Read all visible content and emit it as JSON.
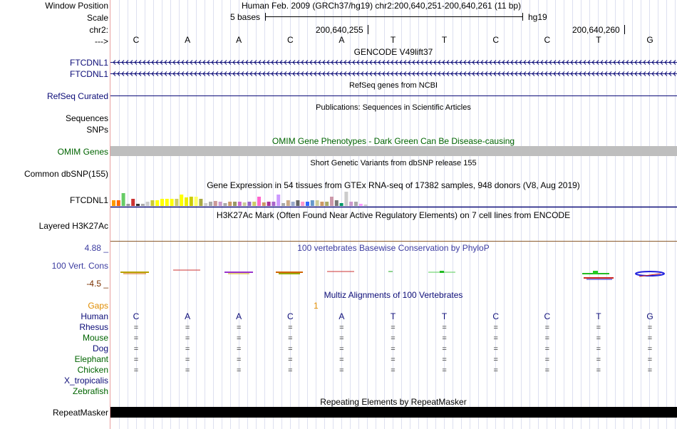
{
  "position": {
    "window_position_label": "Window Position",
    "scale_label": "Scale",
    "chr_label": "chr2:",
    "strand_label": "--->",
    "title": "Human Feb. 2009 (GRCh37/hg19)   chr2:200,640,251-200,640,261 (11 bp)",
    "scale_text": "5 bases",
    "assembly": "hg19",
    "coord_1": "200,640,255",
    "coord_2": "200,640,260"
  },
  "bases": [
    "C",
    "A",
    "A",
    "C",
    "A",
    "T",
    "T",
    "C",
    "C",
    "T",
    "G"
  ],
  "tracks": {
    "gencode": {
      "title": "GENCODE V49lift37",
      "labels": [
        "FTCDNL1",
        "FTCDNL1"
      ],
      "color": "#0c0c78"
    },
    "refseq": {
      "title": "RefSeq genes from NCBI",
      "label": "RefSeq Curated",
      "color": "#0c0c78"
    },
    "publications": {
      "title": "Publications: Sequences in Scientific Articles",
      "label_1": "Sequences",
      "label_2": "SNPs"
    },
    "omim": {
      "title": "OMIM Gene Phenotypes - Dark Green Can Be Disease-causing",
      "label": "OMIM Genes",
      "color": "#006400"
    },
    "dbsnp": {
      "title": "Short Genetic Variants from dbSNP release 155",
      "label": "Common dbSNP(155)"
    },
    "gtex": {
      "title": "Gene Expression in 54 tissues from GTEx RNA-seq of 17382 samples, 948 donors (V8, Aug 2019)",
      "label": "FTCDNL1"
    },
    "h3k27ac": {
      "title": "H3K27Ac Mark (Often Found Near Active Regulatory Elements) on 7 cell lines from ENCODE",
      "label": "Layered H3K27Ac"
    },
    "phylop": {
      "title": "100 vertebrates Basewise Conservation by PhyloP",
      "label": "100 Vert. Cons",
      "max": "4.88 _",
      "min": "-4.5 _",
      "color": "#3c3ca0",
      "min_color": "#7a3000"
    },
    "multiz": {
      "title": "Multiz Alignments of 100 Vertebrates",
      "gaps_label": "Gaps",
      "gap_marker": "1"
    },
    "repeatmasker": {
      "title": "Repeating Elements by RepeatMasker",
      "label": "RepeatMasker"
    }
  },
  "species": [
    {
      "name": "Human",
      "color": "#0c0c78"
    },
    {
      "name": "Rhesus",
      "color": "#0c0c78"
    },
    {
      "name": "Mouse",
      "color": "#006400"
    },
    {
      "name": "Dog",
      "color": "#0c0c78"
    },
    {
      "name": "Elephant",
      "color": "#006400"
    },
    {
      "name": "Chicken",
      "color": "#006400"
    },
    {
      "name": "X_tropicalis",
      "color": "#0c0c78"
    },
    {
      "name": "Zebrafish",
      "color": "#006400"
    }
  ],
  "alignment_rows": [
    "Rhesus",
    "Mouse",
    "Dog",
    "Elephant",
    "Chicken"
  ]
}
